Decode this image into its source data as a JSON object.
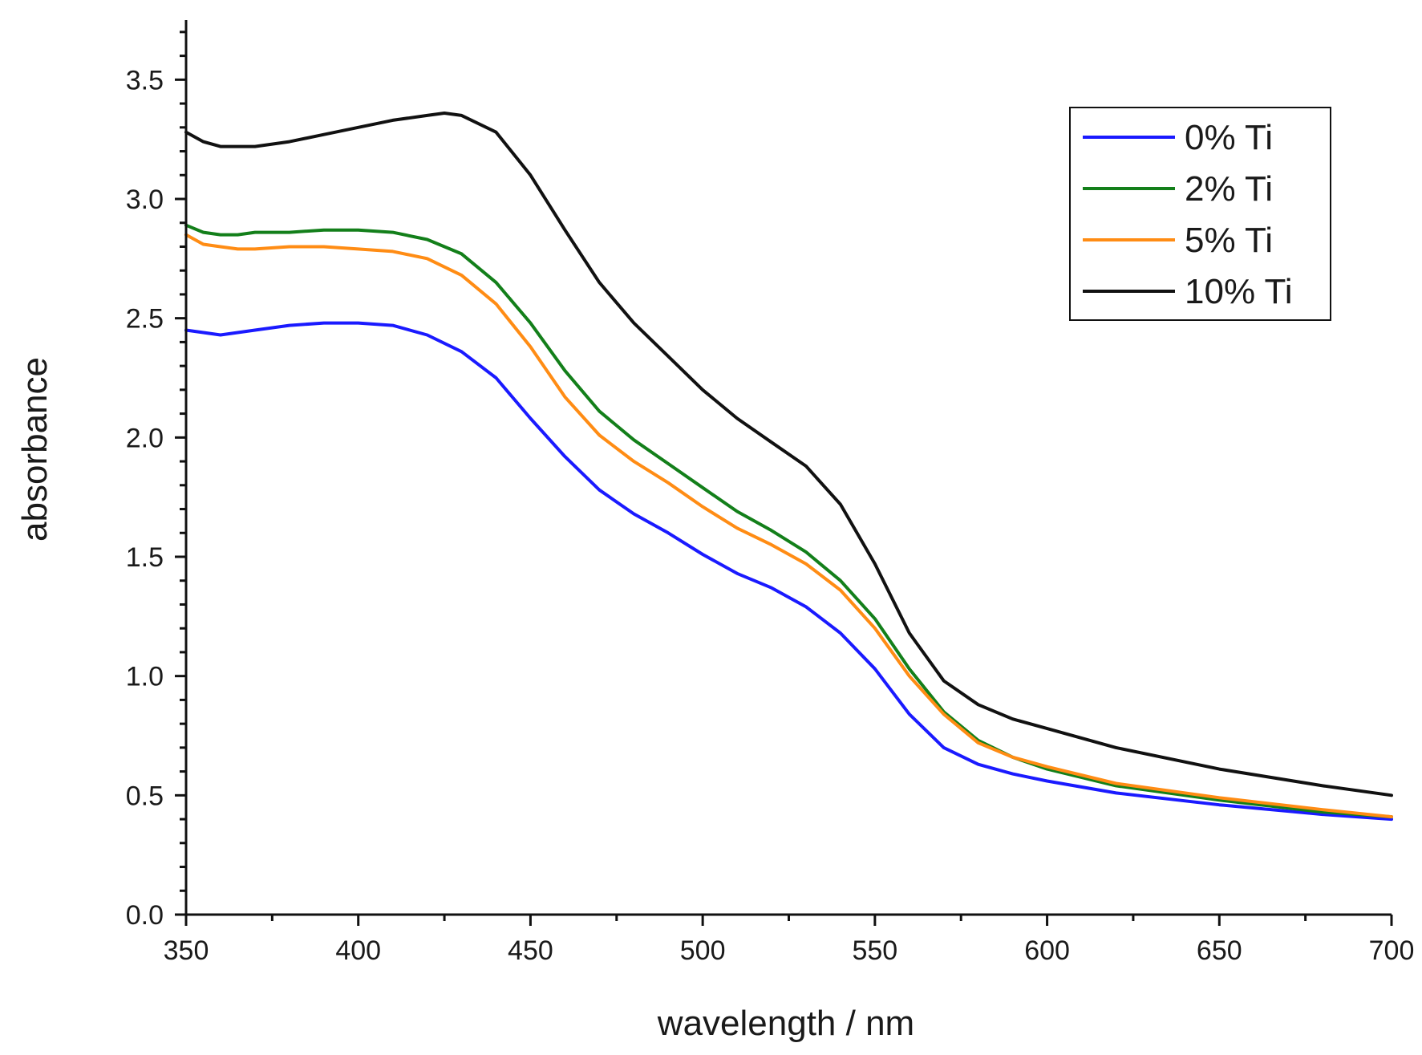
{
  "chart_data": {
    "type": "line",
    "title": "",
    "xlabel": "wavelength / nm",
    "ylabel": "absorbance",
    "xlim": [
      350,
      700
    ],
    "ylim": [
      0.0,
      3.75
    ],
    "x_ticks": [
      350,
      400,
      450,
      500,
      550,
      600,
      650,
      700
    ],
    "x_tick_labels": [
      "350",
      "400",
      "450",
      "500",
      "550",
      "600",
      "650",
      "700"
    ],
    "y_ticks": [
      0.0,
      0.5,
      1.0,
      1.5,
      2.0,
      2.5,
      3.0,
      3.5
    ],
    "y_tick_labels": [
      "0.0",
      "0.5",
      "1.0",
      "1.5",
      "2.0",
      "2.5",
      "3.0",
      "3.5"
    ],
    "grid": false,
    "legend_position": "top-right",
    "series": [
      {
        "name": "0% Ti",
        "color": "#1a1aff",
        "x": [
          350,
          355,
          360,
          365,
          370,
          380,
          390,
          400,
          410,
          420,
          430,
          440,
          450,
          460,
          470,
          480,
          490,
          500,
          510,
          520,
          530,
          540,
          550,
          560,
          570,
          580,
          590,
          600,
          620,
          650,
          680,
          700
        ],
        "y": [
          2.45,
          2.44,
          2.43,
          2.44,
          2.45,
          2.47,
          2.48,
          2.48,
          2.47,
          2.43,
          2.36,
          2.25,
          2.08,
          1.92,
          1.78,
          1.68,
          1.6,
          1.51,
          1.43,
          1.37,
          1.29,
          1.18,
          1.03,
          0.84,
          0.7,
          0.63,
          0.59,
          0.56,
          0.51,
          0.46,
          0.42,
          0.4
        ]
      },
      {
        "name": "2% Ti",
        "color": "#137f1a",
        "x": [
          350,
          355,
          360,
          365,
          370,
          380,
          390,
          400,
          410,
          420,
          430,
          440,
          450,
          460,
          470,
          480,
          490,
          500,
          510,
          520,
          530,
          540,
          550,
          560,
          570,
          580,
          590,
          600,
          620,
          650,
          680,
          700
        ],
        "y": [
          2.89,
          2.86,
          2.85,
          2.85,
          2.86,
          2.86,
          2.87,
          2.87,
          2.86,
          2.83,
          2.77,
          2.65,
          2.48,
          2.28,
          2.11,
          1.99,
          1.89,
          1.79,
          1.69,
          1.61,
          1.52,
          1.4,
          1.24,
          1.03,
          0.85,
          0.73,
          0.66,
          0.61,
          0.54,
          0.48,
          0.43,
          0.41
        ]
      },
      {
        "name": "5% Ti",
        "color": "#ff8c14",
        "x": [
          350,
          355,
          360,
          365,
          370,
          380,
          390,
          400,
          410,
          420,
          430,
          440,
          450,
          460,
          470,
          480,
          490,
          500,
          510,
          520,
          530,
          540,
          550,
          560,
          570,
          580,
          590,
          600,
          620,
          650,
          680,
          700
        ],
        "y": [
          2.85,
          2.81,
          2.8,
          2.79,
          2.79,
          2.8,
          2.8,
          2.79,
          2.78,
          2.75,
          2.68,
          2.56,
          2.38,
          2.17,
          2.01,
          1.9,
          1.81,
          1.71,
          1.62,
          1.55,
          1.47,
          1.36,
          1.2,
          1.0,
          0.84,
          0.72,
          0.66,
          0.62,
          0.55,
          0.49,
          0.44,
          0.41
        ]
      },
      {
        "name": "10% Ti",
        "color": "#111111",
        "x": [
          350,
          355,
          360,
          365,
          370,
          380,
          390,
          400,
          410,
          420,
          425,
          430,
          440,
          450,
          460,
          470,
          480,
          490,
          500,
          510,
          520,
          530,
          540,
          550,
          560,
          570,
          580,
          590,
          600,
          620,
          650,
          680,
          700
        ],
        "y": [
          3.28,
          3.24,
          3.22,
          3.22,
          3.22,
          3.24,
          3.27,
          3.3,
          3.33,
          3.35,
          3.36,
          3.35,
          3.28,
          3.1,
          2.87,
          2.65,
          2.48,
          2.34,
          2.2,
          2.08,
          1.98,
          1.88,
          1.72,
          1.47,
          1.18,
          0.98,
          0.88,
          0.82,
          0.78,
          0.7,
          0.61,
          0.54,
          0.5
        ]
      }
    ]
  }
}
